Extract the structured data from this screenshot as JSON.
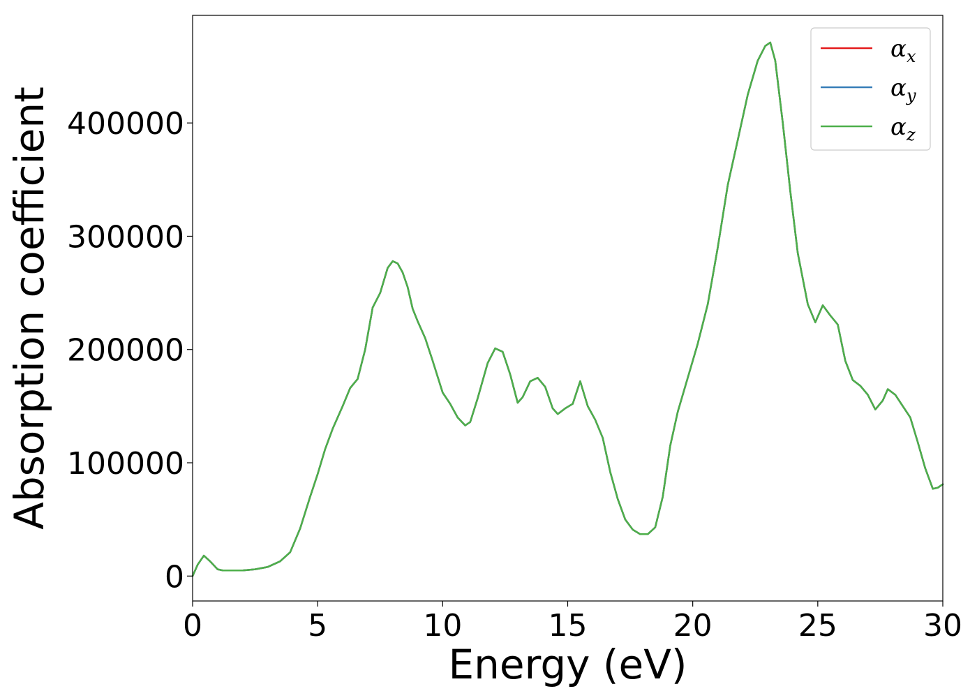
{
  "chart_data": {
    "type": "line",
    "xlabel": "Energy (eV)",
    "ylabel": "Absorption coefficient",
    "xlim": [
      0,
      30
    ],
    "ylim": [
      -22000,
      495000
    ],
    "xticks": [
      0,
      5,
      10,
      15,
      20,
      25,
      30
    ],
    "yticks": [
      0,
      100000,
      200000,
      300000,
      400000
    ],
    "grid": false,
    "legend_position": "top-right",
    "x": [
      0,
      0.2,
      0.45,
      0.7,
      1.0,
      1.2,
      1.6,
      2.0,
      2.5,
      3.0,
      3.5,
      3.9,
      4.3,
      4.7,
      5.0,
      5.3,
      5.6,
      6.0,
      6.3,
      6.6,
      6.9,
      7.2,
      7.5,
      7.8,
      8.0,
      8.2,
      8.4,
      8.6,
      8.8,
      9.0,
      9.3,
      9.6,
      10.0,
      10.3,
      10.6,
      10.9,
      11.1,
      11.4,
      11.8,
      12.1,
      12.4,
      12.7,
      13.0,
      13.2,
      13.5,
      13.8,
      14.1,
      14.4,
      14.6,
      14.9,
      15.2,
      15.5,
      15.8,
      16.1,
      16.4,
      16.7,
      17.0,
      17.3,
      17.6,
      17.9,
      18.2,
      18.5,
      18.8,
      19.1,
      19.4,
      19.8,
      20.2,
      20.6,
      21.0,
      21.4,
      21.8,
      22.2,
      22.6,
      22.9,
      23.1,
      23.3,
      23.6,
      23.9,
      24.2,
      24.6,
      24.9,
      25.2,
      25.5,
      25.8,
      26.1,
      26.4,
      26.7,
      27.0,
      27.3,
      27.6,
      27.8,
      28.1,
      28.4,
      28.7,
      29.0,
      29.3,
      29.6,
      29.8,
      30.0
    ],
    "series": [
      {
        "name": "α_x",
        "label_main": "α",
        "label_sub": "x",
        "color": "#e41a1c",
        "values": [
          0,
          10000,
          18000,
          13000,
          6000,
          5000,
          5000,
          5000,
          6000,
          8000,
          13000,
          21000,
          42000,
          70000,
          90000,
          112000,
          130000,
          150000,
          166000,
          174000,
          200000,
          237000,
          250000,
          272000,
          278000,
          276000,
          268000,
          255000,
          236000,
          225000,
          210000,
          190000,
          162000,
          152000,
          140000,
          133000,
          136000,
          157000,
          188000,
          201000,
          198000,
          178000,
          153000,
          158000,
          172000,
          175000,
          167000,
          148000,
          143000,
          148000,
          152000,
          172000,
          150000,
          138000,
          122000,
          92000,
          68000,
          50000,
          41000,
          37000,
          37000,
          43000,
          70000,
          115000,
          145000,
          175000,
          205000,
          240000,
          290000,
          345000,
          385000,
          425000,
          455000,
          468000,
          471000,
          455000,
          400000,
          340000,
          285000,
          240000,
          224000,
          239000,
          230000,
          222000,
          190000,
          173000,
          168000,
          160000,
          147000,
          155000,
          165000,
          160000,
          150000,
          140000,
          118000,
          95000,
          77000,
          78000,
          81000
        ]
      },
      {
        "name": "α_y",
        "label_main": "α",
        "label_sub": "y",
        "color": "#377eb8",
        "values": [
          0,
          10000,
          18000,
          13000,
          6000,
          5000,
          5000,
          5000,
          6000,
          8000,
          13000,
          21000,
          42000,
          70000,
          90000,
          112000,
          130000,
          150000,
          166000,
          174000,
          200000,
          237000,
          250000,
          272000,
          278000,
          276000,
          268000,
          255000,
          236000,
          225000,
          210000,
          190000,
          162000,
          152000,
          140000,
          133000,
          136000,
          157000,
          188000,
          201000,
          198000,
          178000,
          153000,
          158000,
          172000,
          175000,
          167000,
          148000,
          143000,
          148000,
          152000,
          172000,
          150000,
          138000,
          122000,
          92000,
          68000,
          50000,
          41000,
          37000,
          37000,
          43000,
          70000,
          115000,
          145000,
          175000,
          205000,
          240000,
          290000,
          345000,
          385000,
          425000,
          455000,
          468000,
          471000,
          455000,
          400000,
          340000,
          285000,
          240000,
          224000,
          239000,
          230000,
          222000,
          190000,
          173000,
          168000,
          160000,
          147000,
          155000,
          165000,
          160000,
          150000,
          140000,
          118000,
          95000,
          77000,
          78000,
          81000
        ]
      },
      {
        "name": "α_z",
        "label_main": "α",
        "label_sub": "z",
        "color": "#4daf4a",
        "values": [
          0,
          10000,
          18000,
          13000,
          6000,
          5000,
          5000,
          5000,
          6000,
          8000,
          13000,
          21000,
          42000,
          70000,
          90000,
          112000,
          130000,
          150000,
          166000,
          174000,
          200000,
          237000,
          250000,
          272000,
          278000,
          276000,
          268000,
          255000,
          236000,
          225000,
          210000,
          190000,
          162000,
          152000,
          140000,
          133000,
          136000,
          157000,
          188000,
          201000,
          198000,
          178000,
          153000,
          158000,
          172000,
          175000,
          167000,
          148000,
          143000,
          148000,
          152000,
          172000,
          150000,
          138000,
          122000,
          92000,
          68000,
          50000,
          41000,
          37000,
          37000,
          43000,
          70000,
          115000,
          145000,
          175000,
          205000,
          240000,
          290000,
          345000,
          385000,
          425000,
          455000,
          468000,
          471000,
          455000,
          400000,
          340000,
          285000,
          240000,
          224000,
          239000,
          230000,
          222000,
          190000,
          173000,
          168000,
          160000,
          147000,
          155000,
          165000,
          160000,
          150000,
          140000,
          118000,
          95000,
          77000,
          78000,
          81000
        ]
      }
    ]
  }
}
